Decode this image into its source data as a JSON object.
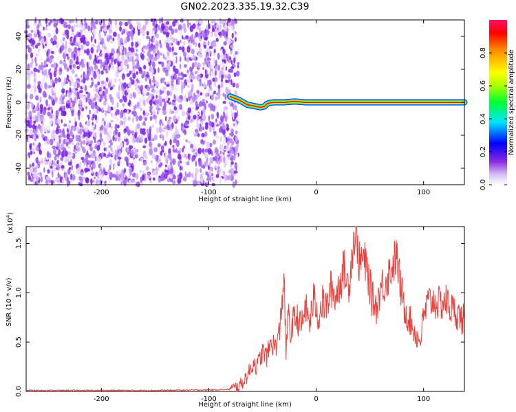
{
  "figure": {
    "title": "GN02.2023.335.19.32.C39"
  },
  "chart_data": [
    {
      "type": "heatmap",
      "xlabel": "Height of straight line (km)",
      "ylabel": "Frequency (Hz)",
      "xlim": [
        -270,
        138
      ],
      "ylim": [
        -50,
        50
      ],
      "x_ticks": [
        -200,
        -100,
        0,
        100
      ],
      "y_ticks": [
        -40,
        -20,
        0,
        20,
        40
      ],
      "noise_region_x": [
        -270,
        -75
      ],
      "signal_track": {
        "x": [
          -80,
          -76,
          -72,
          -68,
          -64,
          -60,
          -56,
          -52,
          -48,
          -46,
          -44,
          -40,
          -30,
          -20,
          -10,
          0,
          20,
          40,
          60,
          80,
          100,
          120,
          138
        ],
        "y": [
          3.5,
          2.5,
          1.5,
          0,
          -1.5,
          -2,
          -2.5,
          -3,
          -2.5,
          -1,
          -0.5,
          0,
          0,
          0.5,
          0,
          0,
          0,
          0,
          0,
          0,
          0,
          0,
          0
        ]
      },
      "colorbar": {
        "label": "Normalized spectral amplitude",
        "range": [
          0,
          1
        ],
        "ticks": [
          "0.0",
          "0.2",
          "0.4",
          "0.6",
          "0.8"
        ]
      }
    },
    {
      "type": "line",
      "xlabel": "Height of straight line (km)",
      "ylabel": "SNR (10 * v/v)",
      "scale_label": "(x10",
      "scale_exp": "4",
      "scale_close": ")",
      "xlim": [
        -270,
        138
      ],
      "ylim": [
        0,
        1.67
      ],
      "x_ticks": [
        -200,
        -100,
        0,
        100
      ],
      "y_ticks": [
        0.0,
        0.5,
        1.0,
        1.5
      ],
      "line_color": "#e8413c",
      "series": [
        {
          "x": [
            -270,
            -200,
            -150,
            -100,
            -80,
            -72,
            -68,
            -62,
            -58,
            -55,
            -50,
            -46,
            -42,
            -38,
            -34,
            -30,
            -28,
            -26,
            -24,
            -22,
            -18,
            -14,
            -10,
            -6,
            -2,
            2,
            6,
            10,
            14,
            18,
            22,
            26,
            30,
            34,
            37,
            40,
            44,
            48,
            52,
            56,
            60,
            64,
            68,
            72,
            75,
            78,
            82,
            86,
            90,
            94,
            97,
            100,
            104,
            108,
            112,
            116,
            120,
            124,
            128,
            132,
            136,
            138
          ],
          "y": [
            0.01,
            0.01,
            0.01,
            0.015,
            0.02,
            0.05,
            0.1,
            0.2,
            0.3,
            0.25,
            0.4,
            0.35,
            0.5,
            0.45,
            0.6,
            1.18,
            0.4,
            0.8,
            0.55,
            0.7,
            0.75,
            0.65,
            0.85,
            0.7,
            0.95,
            0.75,
            0.9,
            0.85,
            1.05,
            0.95,
            1.1,
            1.25,
            1.05,
            1.45,
            1.65,
            1.3,
            1.35,
            1.2,
            0.95,
            0.85,
            1.05,
            1.1,
            1.2,
            1.3,
            1.38,
            1.1,
            0.85,
            0.75,
            0.65,
            0.55,
            0.52,
            0.75,
            0.9,
            0.92,
            0.9,
            0.88,
            0.93,
            0.86,
            0.82,
            0.78,
            0.72,
            0.75
          ]
        }
      ]
    }
  ]
}
